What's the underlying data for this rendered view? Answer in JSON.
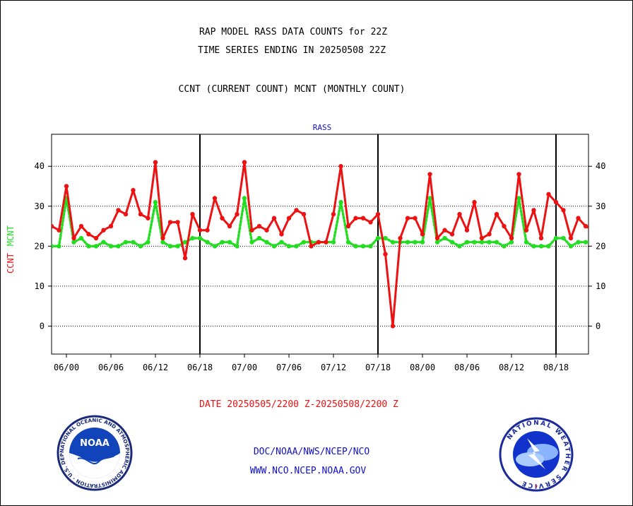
{
  "header": {
    "title_line1": "RAP MODEL RASS DATA COUNTS for 22Z",
    "title_line2": "TIME SERIES ENDING IN 20250508 22Z",
    "legend_line": "CCNT (CURRENT COUNT) MCNT (MONTHLY COUNT)"
  },
  "footer": {
    "date_range": "DATE 20250505/2200 Z-20250508/2200 Z",
    "org_line": "DOC/NOAA/NWS/NCEP/NCO",
    "url_line": "WWW.NCO.NCEP.NOAA.GOV"
  },
  "logos": {
    "noaa_label": "NOAA",
    "noaa_ring_text": "NATIONAL OCEANIC AND ATMOSPHERIC ADMINISTRATION · U.S. DEPARTMENT OF COMMERCE ·",
    "nws_ring_text": "NATIONAL WEATHER SERVICE"
  },
  "colors": {
    "ccnt": "#ee1111",
    "mcnt": "#22dd22",
    "title_blue": "#1111cc",
    "date_red": "#ee1111"
  },
  "chart_data": {
    "type": "line",
    "title": "RASS",
    "ylabel_ccnt": "CCNT",
    "ylabel_mcnt": "MCNT",
    "ylim": [
      -7,
      48
    ],
    "yticks": [
      0,
      10,
      20,
      30,
      40
    ],
    "grid": "horizontal dotted",
    "x_unit": "hour index starting 05/22",
    "xlim": [
      0,
      72
    ],
    "xtick_labels": [
      "06/00",
      "06/06",
      "06/12",
      "06/18",
      "07/00",
      "07/06",
      "07/12",
      "07/18",
      "08/00",
      "08/06",
      "08/12",
      "08/18"
    ],
    "xtick_positions": [
      2,
      8,
      14,
      20,
      26,
      32,
      38,
      44,
      50,
      56,
      62,
      68
    ],
    "day_separators": [
      20,
      44,
      68
    ],
    "series": [
      {
        "name": "CCNT",
        "values": [
          25,
          24,
          35,
          22,
          25,
          23,
          22,
          24,
          25,
          29,
          28,
          34,
          28,
          27,
          41,
          22,
          26,
          26,
          17,
          28,
          24,
          24,
          32,
          27,
          25,
          28,
          41,
          24,
          25,
          24,
          27,
          23,
          27,
          29,
          28,
          20,
          21,
          21,
          28,
          40,
          25,
          27,
          27,
          26,
          28,
          18,
          0,
          22,
          27,
          27,
          23,
          38,
          22,
          24,
          23,
          28,
          24,
          31,
          22,
          23,
          28,
          25,
          22,
          38,
          24,
          29,
          22,
          33,
          31,
          29,
          22,
          27,
          25,
          24
        ]
      },
      {
        "name": "MCNT",
        "values": [
          20,
          20,
          32,
          21,
          22,
          20,
          20,
          21,
          20,
          20,
          21,
          21,
          20,
          21,
          31,
          21,
          20,
          20,
          21,
          22,
          22,
          21,
          20,
          21,
          21,
          20,
          32,
          21,
          22,
          21,
          20,
          21,
          20,
          20,
          21,
          21,
          21,
          21,
          21,
          31,
          21,
          20,
          20,
          20,
          22,
          22,
          21,
          21,
          21,
          21,
          21,
          32,
          21,
          22,
          21,
          20,
          21,
          21,
          21,
          21,
          21,
          20,
          21,
          32,
          21,
          20,
          20,
          20,
          22,
          22,
          20,
          21,
          21,
          21
        ]
      }
    ]
  }
}
